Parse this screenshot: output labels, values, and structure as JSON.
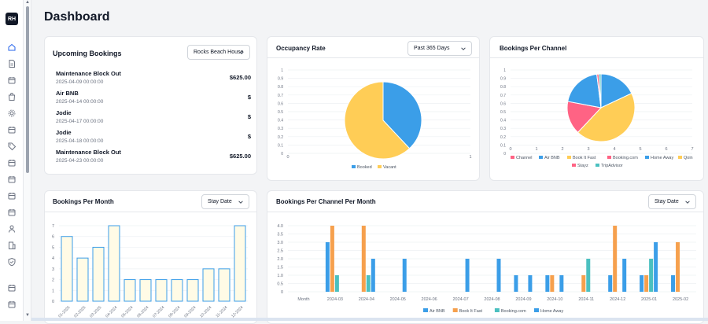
{
  "sidebar": {
    "logo": "RH",
    "items": [
      {
        "icon": "home-icon",
        "active": true
      },
      {
        "icon": "document-icon"
      },
      {
        "icon": "calendar-icon"
      },
      {
        "icon": "bag-icon"
      },
      {
        "icon": "gear-icon"
      },
      {
        "icon": "calendar-icon"
      },
      {
        "icon": "tag-icon"
      },
      {
        "icon": "calendar-icon"
      },
      {
        "icon": "calendar-icon"
      },
      {
        "icon": "calendar-icon"
      },
      {
        "icon": "calendar-icon"
      },
      {
        "icon": "user-icon"
      },
      {
        "icon": "building-icon"
      },
      {
        "icon": "shield-icon"
      },
      {
        "icon": "calendar-icon"
      },
      {
        "icon": "calendar-icon"
      }
    ]
  },
  "page": {
    "title": "Dashboard"
  },
  "upcoming": {
    "title": "Upcoming Bookings",
    "property_select": "Rocks Beach House",
    "bookings": [
      {
        "name": "Maintenance Block Out",
        "date": "2025-04-09 00:00:00",
        "amount": "$625.00"
      },
      {
        "name": "Air BNB",
        "date": "2025-04-14 00:00:00",
        "amount": "$"
      },
      {
        "name": "Jodie",
        "date": "2025-04-17 00:00:00",
        "amount": "$"
      },
      {
        "name": "Jodie",
        "date": "2025-04-18 00:00:00",
        "amount": "$"
      },
      {
        "name": "Maintenance Block Out",
        "date": "2025-04-23 00:00:00",
        "amount": "$625.00"
      }
    ]
  },
  "occupancy": {
    "title": "Occupancy Rate",
    "period_select": "Past 365 Days"
  },
  "channel": {
    "title": "Bookings Per Channel"
  },
  "per_month": {
    "title": "Bookings Per Month",
    "date_select": "Stay Date"
  },
  "channel_month": {
    "title": "Bookings Per Channel Per Month",
    "date_select": "Stay Date"
  },
  "colors": {
    "blue": "#3b9ee8",
    "yellow": "#ffcd56",
    "pink": "#ff6384",
    "orange": "#f6a04d",
    "teal": "#4bc0c0",
    "cream": "#fffbe6",
    "purple": "#9966ff"
  },
  "chart_data": [
    {
      "type": "pie",
      "title": "",
      "labels": [
        "Booked",
        "Vacant"
      ],
      "values": [
        0.38,
        0.62
      ],
      "colors": [
        "#3b9ee8",
        "#ffcd56"
      ],
      "y_ticks": [
        "1",
        "0.9",
        "0.8",
        "0.7",
        "0.6",
        "0.5",
        "0.4",
        "0.3",
        "0.2",
        "0.1",
        "0"
      ],
      "x_ticks": [
        "0",
        "1"
      ],
      "grid": true,
      "legend": "bottom"
    },
    {
      "type": "pie",
      "title": "",
      "labels": [
        "Channel",
        "Air BNB",
        "Book It Fast",
        "Booking.com",
        "Home Away",
        "Qoin",
        "Stayz",
        "TripAdvisor"
      ],
      "values": [
        0,
        0.18,
        0.44,
        0.16,
        0.2,
        0,
        0.01,
        0.01
      ],
      "colors": [
        "#ff6384",
        "#3b9ee8",
        "#ffcd56",
        "#ff6384",
        "#3b9ee8",
        "#ffcd56",
        "#ff6384",
        "#4bc0c0"
      ],
      "legend_colors": [
        "#ff6384",
        "#3b9ee8",
        "#ffcd56",
        "#ff6384",
        "#3b9ee8",
        "#ffcd56",
        "#ff6384",
        "#4bc0c0"
      ],
      "y_ticks": [
        "1",
        "0.9",
        "0.8",
        "0.7",
        "0.6",
        "0.5",
        "0.4",
        "0.3",
        "0.2",
        "0.1",
        "0"
      ],
      "x_ticks": [
        "0",
        "1",
        "2",
        "3",
        "4",
        "5",
        "6",
        "7"
      ],
      "grid": true,
      "legend": "bottom"
    },
    {
      "type": "bar",
      "title": "",
      "categories": [
        "01-2025",
        "02-2025",
        "03-2025",
        "04-2024",
        "05-2024",
        "06-2024",
        "07-2024",
        "08-2024",
        "09-2024",
        "10-2024",
        "11-2024",
        "12-2024"
      ],
      "values": [
        6,
        4,
        5,
        7,
        2,
        2,
        2,
        2,
        2,
        3,
        3,
        7
      ],
      "ylim": [
        0,
        7
      ],
      "y_ticks": [
        "7",
        "6",
        "5",
        "4",
        "3",
        "2",
        "1",
        "0"
      ],
      "bar_fill": "#fffbe6",
      "bar_stroke": "#3b9ee8",
      "grid": true
    },
    {
      "type": "bar",
      "title": "",
      "categories": [
        "Month",
        "2024-03",
        "2024-04",
        "2024-05",
        "2024-06",
        "2024-07",
        "2024-08",
        "2024-09",
        "2024-10",
        "2024-11",
        "2024-12",
        "2025-01",
        "2025-02"
      ],
      "series": [
        {
          "name": "Air BNB",
          "color": "#3b9ee8",
          "values": [
            0,
            3,
            0,
            0,
            0,
            0,
            0,
            1,
            1,
            0,
            1,
            1,
            1
          ]
        },
        {
          "name": "Book It Fast",
          "color": "#f6a04d",
          "values": [
            0,
            4,
            4,
            0,
            0,
            0,
            0,
            0,
            1,
            1,
            4,
            1,
            3
          ]
        },
        {
          "name": "Booking.com",
          "color": "#4bc0c0",
          "values": [
            0,
            1,
            1,
            0,
            0,
            0,
            0,
            0,
            0,
            2,
            0,
            2,
            0
          ]
        },
        {
          "name": "Home Away",
          "color": "#3b9ee8",
          "values": [
            0,
            0,
            2,
            2,
            0,
            2,
            2,
            1,
            1,
            0,
            2,
            3,
            0
          ]
        }
      ],
      "ylim": [
        0,
        4
      ],
      "y_ticks": [
        "4.0",
        "3.5",
        "3.0",
        "2.5",
        "2.0",
        "1.5",
        "1.0",
        "0.5",
        "0"
      ],
      "grid": true,
      "legend": "bottom"
    }
  ]
}
